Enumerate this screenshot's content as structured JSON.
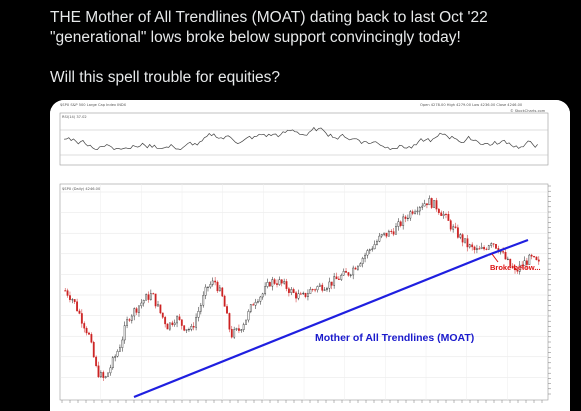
{
  "post": {
    "line1": "THE Mother of All Trendlines (MOAT) dating back to last Oct '22",
    "line2": "\"generational\" lows broke below support convincingly today!",
    "line3": "Will this spell trouble for equities?"
  },
  "chart": {
    "header_symbol": "$SPX S&P 500 Large Cap Index INDX",
    "header_stats": "Open 4278.00  High 4279.00  Low 4236.00  Close 4246.00",
    "watermark": "© StockCharts.com",
    "rsi_label": "RSI(14) 37.02",
    "price_label": "$SPX (Daily) 4246.00",
    "trendline_label": "Mother of All Trendlines (MOAT)",
    "break_label": "Broke below...",
    "colors": {
      "trendline": "#1f1fe0",
      "trend_text": "#1a1acc",
      "break_text": "#dd1111",
      "up": "#222222",
      "down": "#cc2222"
    }
  },
  "chart_data": {
    "type": "line",
    "series": [
      {
        "values": [
          4100,
          4050,
          3950,
          3850,
          3650,
          3600,
          3700,
          3800,
          3950,
          4000,
          4050,
          4080,
          3980,
          3900,
          3950,
          3900,
          3880,
          4000,
          4120,
          4150,
          4050,
          3850,
          3880,
          3950,
          4050,
          4080,
          4150,
          4150,
          4120,
          4080,
          4060,
          4100,
          4120,
          4130,
          4150,
          4180,
          4200,
          4250,
          4300,
          4350,
          4400,
          4420,
          4450,
          4500,
          4550,
          4580,
          4600,
          4570,
          4520,
          4450,
          4400,
          4350,
          4320,
          4330,
          4380,
          4330,
          4260,
          4200,
          4250,
          4280,
          4246
        ]
      }
    ]
  }
}
